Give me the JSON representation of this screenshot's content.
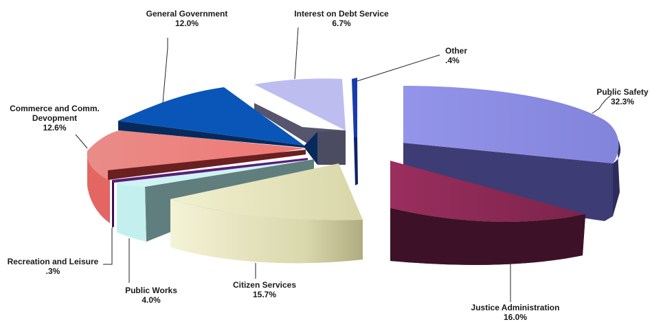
{
  "chart_data": {
    "type": "pie",
    "title": "",
    "style": "3d exploded",
    "slices": [
      {
        "name": "Public Safety",
        "value": 32.3,
        "label": "32.3%",
        "color": "#8E8FE6"
      },
      {
        "name": "Justice Administration",
        "value": 16.0,
        "label": "16.0%",
        "color": "#8C2A54"
      },
      {
        "name": "Citizen Services",
        "value": 15.7,
        "label": "15.7%",
        "color": "#EEEDC2"
      },
      {
        "name": "Public Works",
        "value": 4.0,
        "label": "4.0%",
        "color": "#C8F0F0"
      },
      {
        "name": "Recreation and Leisure",
        "value": 0.3,
        "label": ".3%",
        "color": "#5A1E7A"
      },
      {
        "name": "Commerce and Comm. Devopment",
        "value": 12.6,
        "label": "12.6%",
        "color": "#EE7674"
      },
      {
        "name": "General Government",
        "value": 12.0,
        "label": "12.0%",
        "color": "#0A56B8"
      },
      {
        "name": "Interest on Debt Service",
        "value": 6.7,
        "label": "6.7%",
        "color": "#BDBDF0"
      },
      {
        "name": "Other",
        "value": 0.4,
        "label": ".4%",
        "color": "#1A3CA8"
      }
    ],
    "label_text": {
      "public_safety": "Public Safety",
      "justice_administration": "Justice Administration",
      "citizen_services": "Citizen Services",
      "public_works": "Public Works",
      "recreation": "Recreation and Leisure",
      "commerce_line1": "Commerce and Comm.",
      "commerce_line2": "Devopment",
      "general_government": "General Government",
      "interest_debt": "Interest on Debt Service",
      "other": "Other"
    }
  }
}
